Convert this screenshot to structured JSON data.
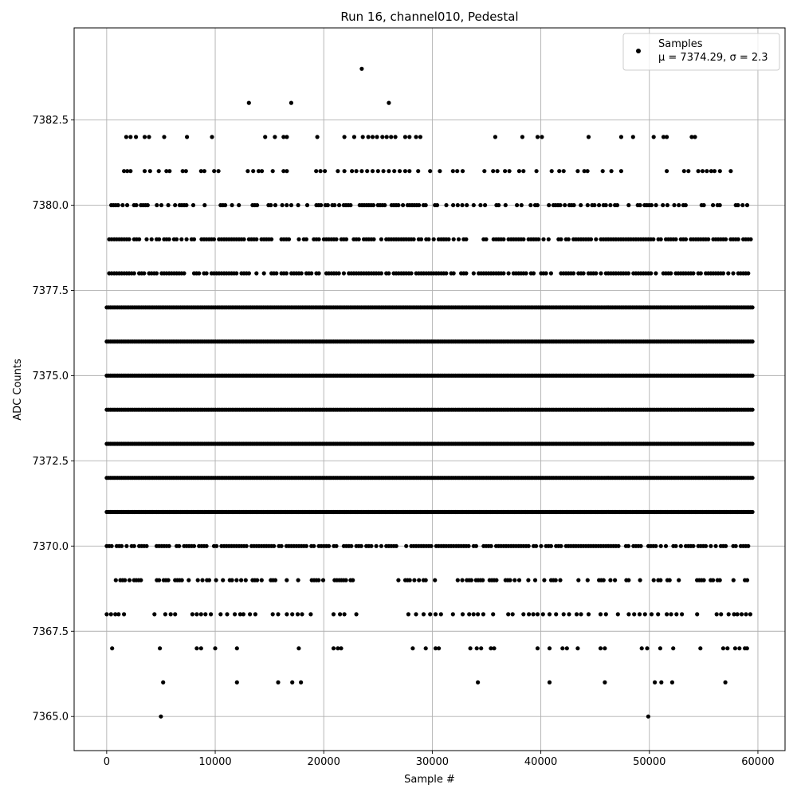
{
  "chart_data": {
    "type": "scatter",
    "title": "Run 16, channel010, Pedestal",
    "xlabel": "Sample #",
    "ylabel": "ADC Counts",
    "xlim": [
      -3000,
      62500
    ],
    "ylim": [
      7364.0,
      7385.2
    ],
    "xticks": [
      0,
      10000,
      20000,
      30000,
      40000,
      50000,
      60000
    ],
    "yticks": [
      7365.0,
      7367.5,
      7370.0,
      7372.5,
      7375.0,
      7377.5,
      7380.0,
      7382.5
    ],
    "xtick_labels": [
      "0",
      "10000",
      "20000",
      "30000",
      "40000",
      "50000",
      "60000"
    ],
    "ytick_labels": [
      "7365.0",
      "7367.5",
      "7370.0",
      "7372.5",
      "7375.0",
      "7377.5",
      "7380.0",
      "7382.5"
    ],
    "grid": true,
    "legend_position": "top-right",
    "series": [
      {
        "name": "Samples",
        "color": "#000000",
        "marker": "circle",
        "stats_label": "μ = 7374.29, σ = 2.3",
        "mean": 7374.29,
        "sigma": 2.3,
        "sample_range": [
          0,
          59500
        ],
        "dense_levels": [
          7371,
          7372,
          7373,
          7374,
          7375,
          7376,
          7377
        ],
        "medium_levels": [
          7370,
          7378,
          7379
        ],
        "sparse_levels": [
          7369,
          7380
        ],
        "points": [
          {
            "x": 5000,
            "y": 7365
          },
          {
            "x": 49900,
            "y": 7365
          },
          {
            "x": 5200,
            "y": 7366
          },
          {
            "x": 12000,
            "y": 7366
          },
          {
            "x": 15800,
            "y": 7366
          },
          {
            "x": 17100,
            "y": 7366
          },
          {
            "x": 17900,
            "y": 7366
          },
          {
            "x": 34200,
            "y": 7366
          },
          {
            "x": 40800,
            "y": 7366
          },
          {
            "x": 45900,
            "y": 7366
          },
          {
            "x": 50500,
            "y": 7366
          },
          {
            "x": 51100,
            "y": 7366
          },
          {
            "x": 52100,
            "y": 7366
          },
          {
            "x": 57000,
            "y": 7366
          },
          {
            "x": 500,
            "y": 7367
          },
          {
            "x": 4900,
            "y": 7367
          },
          {
            "x": 8300,
            "y": 7367
          },
          {
            "x": 8700,
            "y": 7367
          },
          {
            "x": 10000,
            "y": 7367
          },
          {
            "x": 12000,
            "y": 7367
          },
          {
            "x": 17700,
            "y": 7367
          },
          {
            "x": 20900,
            "y": 7367
          },
          {
            "x": 21300,
            "y": 7367
          },
          {
            "x": 21600,
            "y": 7367
          },
          {
            "x": 28200,
            "y": 7367
          },
          {
            "x": 29400,
            "y": 7367
          },
          {
            "x": 30300,
            "y": 7367
          },
          {
            "x": 30600,
            "y": 7367
          },
          {
            "x": 33500,
            "y": 7367
          },
          {
            "x": 34100,
            "y": 7367
          },
          {
            "x": 34500,
            "y": 7367
          },
          {
            "x": 35400,
            "y": 7367
          },
          {
            "x": 35700,
            "y": 7367
          },
          {
            "x": 39700,
            "y": 7367
          },
          {
            "x": 40800,
            "y": 7367
          },
          {
            "x": 42000,
            "y": 7367
          },
          {
            "x": 42400,
            "y": 7367
          },
          {
            "x": 43400,
            "y": 7367
          },
          {
            "x": 45500,
            "y": 7367
          },
          {
            "x": 45900,
            "y": 7367
          },
          {
            "x": 49300,
            "y": 7367
          },
          {
            "x": 49800,
            "y": 7367
          },
          {
            "x": 51000,
            "y": 7367
          },
          {
            "x": 52200,
            "y": 7367
          },
          {
            "x": 54700,
            "y": 7367
          },
          {
            "x": 56800,
            "y": 7367
          },
          {
            "x": 57200,
            "y": 7367
          },
          {
            "x": 57900,
            "y": 7367
          },
          {
            "x": 58300,
            "y": 7367
          },
          {
            "x": 58800,
            "y": 7367
          },
          {
            "x": 59000,
            "y": 7367
          },
          {
            "x": 0,
            "y": 7368
          },
          {
            "x": 400,
            "y": 7368
          },
          {
            "x": 800,
            "y": 7368
          },
          {
            "x": 1100,
            "y": 7368
          },
          {
            "x": 1600,
            "y": 7368
          },
          {
            "x": 4400,
            "y": 7368
          },
          {
            "x": 5400,
            "y": 7368
          },
          {
            "x": 5900,
            "y": 7368
          },
          {
            "x": 6300,
            "y": 7368
          },
          {
            "x": 7900,
            "y": 7368
          },
          {
            "x": 8300,
            "y": 7368
          },
          {
            "x": 8700,
            "y": 7368
          },
          {
            "x": 9100,
            "y": 7368
          },
          {
            "x": 9600,
            "y": 7368
          },
          {
            "x": 10500,
            "y": 7368
          },
          {
            "x": 11100,
            "y": 7368
          },
          {
            "x": 11800,
            "y": 7368
          },
          {
            "x": 12300,
            "y": 7368
          },
          {
            "x": 12600,
            "y": 7368
          },
          {
            "x": 13200,
            "y": 7368
          },
          {
            "x": 13700,
            "y": 7368
          },
          {
            "x": 15300,
            "y": 7368
          },
          {
            "x": 15800,
            "y": 7368
          },
          {
            "x": 16600,
            "y": 7368
          },
          {
            "x": 17100,
            "y": 7368
          },
          {
            "x": 17600,
            "y": 7368
          },
          {
            "x": 18000,
            "y": 7368
          },
          {
            "x": 18800,
            "y": 7368
          },
          {
            "x": 20900,
            "y": 7368
          },
          {
            "x": 21500,
            "y": 7368
          },
          {
            "x": 21900,
            "y": 7368
          },
          {
            "x": 23000,
            "y": 7368
          },
          {
            "x": 27800,
            "y": 7368
          },
          {
            "x": 28500,
            "y": 7368
          },
          {
            "x": 29200,
            "y": 7368
          },
          {
            "x": 29800,
            "y": 7368
          },
          {
            "x": 30300,
            "y": 7368
          },
          {
            "x": 30800,
            "y": 7368
          },
          {
            "x": 31900,
            "y": 7368
          },
          {
            "x": 32800,
            "y": 7368
          },
          {
            "x": 33400,
            "y": 7368
          },
          {
            "x": 33800,
            "y": 7368
          },
          {
            "x": 34200,
            "y": 7368
          },
          {
            "x": 34700,
            "y": 7368
          },
          {
            "x": 35600,
            "y": 7368
          },
          {
            "x": 37000,
            "y": 7368
          },
          {
            "x": 37400,
            "y": 7368
          },
          {
            "x": 38400,
            "y": 7368
          },
          {
            "x": 38900,
            "y": 7368
          },
          {
            "x": 39300,
            "y": 7368
          },
          {
            "x": 39700,
            "y": 7368
          },
          {
            "x": 40200,
            "y": 7368
          },
          {
            "x": 40800,
            "y": 7368
          },
          {
            "x": 41400,
            "y": 7368
          },
          {
            "x": 42100,
            "y": 7368
          },
          {
            "x": 42600,
            "y": 7368
          },
          {
            "x": 43300,
            "y": 7368
          },
          {
            "x": 43700,
            "y": 7368
          },
          {
            "x": 44400,
            "y": 7368
          },
          {
            "x": 45500,
            "y": 7368
          },
          {
            "x": 46000,
            "y": 7368
          },
          {
            "x": 47100,
            "y": 7368
          },
          {
            "x": 48100,
            "y": 7368
          },
          {
            "x": 48600,
            "y": 7368
          },
          {
            "x": 49100,
            "y": 7368
          },
          {
            "x": 49600,
            "y": 7368
          },
          {
            "x": 50200,
            "y": 7368
          },
          {
            "x": 50800,
            "y": 7368
          },
          {
            "x": 51600,
            "y": 7368
          },
          {
            "x": 52000,
            "y": 7368
          },
          {
            "x": 52500,
            "y": 7368
          },
          {
            "x": 53000,
            "y": 7368
          },
          {
            "x": 54400,
            "y": 7368
          },
          {
            "x": 56200,
            "y": 7368
          },
          {
            "x": 56600,
            "y": 7368
          },
          {
            "x": 57300,
            "y": 7368
          },
          {
            "x": 57800,
            "y": 7368
          },
          {
            "x": 58100,
            "y": 7368
          },
          {
            "x": 58500,
            "y": 7368
          },
          {
            "x": 58900,
            "y": 7368
          },
          {
            "x": 59300,
            "y": 7368
          },
          {
            "x": 13100,
            "y": 7383
          },
          {
            "x": 17000,
            "y": 7383
          },
          {
            "x": 26000,
            "y": 7383
          },
          {
            "x": 23500,
            "y": 7384
          },
          {
            "x": 1800,
            "y": 7382
          },
          {
            "x": 2200,
            "y": 7382
          },
          {
            "x": 2700,
            "y": 7382
          },
          {
            "x": 3500,
            "y": 7382
          },
          {
            "x": 3900,
            "y": 7382
          },
          {
            "x": 5300,
            "y": 7382
          },
          {
            "x": 7400,
            "y": 7382
          },
          {
            "x": 9700,
            "y": 7382
          },
          {
            "x": 14600,
            "y": 7382
          },
          {
            "x": 15500,
            "y": 7382
          },
          {
            "x": 16300,
            "y": 7382
          },
          {
            "x": 16600,
            "y": 7382
          },
          {
            "x": 19400,
            "y": 7382
          },
          {
            "x": 21900,
            "y": 7382
          },
          {
            "x": 22800,
            "y": 7382
          },
          {
            "x": 23600,
            "y": 7382
          },
          {
            "x": 24100,
            "y": 7382
          },
          {
            "x": 24500,
            "y": 7382
          },
          {
            "x": 24900,
            "y": 7382
          },
          {
            "x": 25400,
            "y": 7382
          },
          {
            "x": 25800,
            "y": 7382
          },
          {
            "x": 26200,
            "y": 7382
          },
          {
            "x": 26600,
            "y": 7382
          },
          {
            "x": 27500,
            "y": 7382
          },
          {
            "x": 27900,
            "y": 7382
          },
          {
            "x": 28500,
            "y": 7382
          },
          {
            "x": 28900,
            "y": 7382
          },
          {
            "x": 35800,
            "y": 7382
          },
          {
            "x": 38300,
            "y": 7382
          },
          {
            "x": 39700,
            "y": 7382
          },
          {
            "x": 40100,
            "y": 7382
          },
          {
            "x": 44400,
            "y": 7382
          },
          {
            "x": 47400,
            "y": 7382
          },
          {
            "x": 48500,
            "y": 7382
          },
          {
            "x": 50400,
            "y": 7382
          },
          {
            "x": 51300,
            "y": 7382
          },
          {
            "x": 51600,
            "y": 7382
          },
          {
            "x": 53900,
            "y": 7382
          },
          {
            "x": 54200,
            "y": 7382
          },
          {
            "x": 1600,
            "y": 7381
          },
          {
            "x": 1900,
            "y": 7381
          },
          {
            "x": 2200,
            "y": 7381
          },
          {
            "x": 3500,
            "y": 7381
          },
          {
            "x": 4000,
            "y": 7381
          },
          {
            "x": 4800,
            "y": 7381
          },
          {
            "x": 5500,
            "y": 7381
          },
          {
            "x": 5800,
            "y": 7381
          },
          {
            "x": 7000,
            "y": 7381
          },
          {
            "x": 7300,
            "y": 7381
          },
          {
            "x": 8700,
            "y": 7381
          },
          {
            "x": 9000,
            "y": 7381
          },
          {
            "x": 9900,
            "y": 7381
          },
          {
            "x": 10300,
            "y": 7381
          },
          {
            "x": 13000,
            "y": 7381
          },
          {
            "x": 13500,
            "y": 7381
          },
          {
            "x": 14000,
            "y": 7381
          },
          {
            "x": 14300,
            "y": 7381
          },
          {
            "x": 15300,
            "y": 7381
          },
          {
            "x": 16300,
            "y": 7381
          },
          {
            "x": 16600,
            "y": 7381
          },
          {
            "x": 19300,
            "y": 7381
          },
          {
            "x": 19700,
            "y": 7381
          },
          {
            "x": 20100,
            "y": 7381
          },
          {
            "x": 21300,
            "y": 7381
          },
          {
            "x": 21900,
            "y": 7381
          },
          {
            "x": 22600,
            "y": 7381
          },
          {
            "x": 23000,
            "y": 7381
          },
          {
            "x": 23500,
            "y": 7381
          },
          {
            "x": 24000,
            "y": 7381
          },
          {
            "x": 24500,
            "y": 7381
          },
          {
            "x": 25000,
            "y": 7381
          },
          {
            "x": 25500,
            "y": 7381
          },
          {
            "x": 26000,
            "y": 7381
          },
          {
            "x": 26500,
            "y": 7381
          },
          {
            "x": 27000,
            "y": 7381
          },
          {
            "x": 27500,
            "y": 7381
          },
          {
            "x": 27900,
            "y": 7381
          },
          {
            "x": 28700,
            "y": 7381
          },
          {
            "x": 29800,
            "y": 7381
          },
          {
            "x": 30700,
            "y": 7381
          },
          {
            "x": 31900,
            "y": 7381
          },
          {
            "x": 32300,
            "y": 7381
          },
          {
            "x": 32800,
            "y": 7381
          },
          {
            "x": 34800,
            "y": 7381
          },
          {
            "x": 35600,
            "y": 7381
          },
          {
            "x": 36000,
            "y": 7381
          },
          {
            "x": 36700,
            "y": 7381
          },
          {
            "x": 37100,
            "y": 7381
          },
          {
            "x": 38000,
            "y": 7381
          },
          {
            "x": 38400,
            "y": 7381
          },
          {
            "x": 39600,
            "y": 7381
          },
          {
            "x": 41000,
            "y": 7381
          },
          {
            "x": 41700,
            "y": 7381
          },
          {
            "x": 42100,
            "y": 7381
          },
          {
            "x": 43400,
            "y": 7381
          },
          {
            "x": 44000,
            "y": 7381
          },
          {
            "x": 44300,
            "y": 7381
          },
          {
            "x": 45700,
            "y": 7381
          },
          {
            "x": 46500,
            "y": 7381
          },
          {
            "x": 47400,
            "y": 7381
          },
          {
            "x": 51600,
            "y": 7381
          },
          {
            "x": 53200,
            "y": 7381
          },
          {
            "x": 53600,
            "y": 7381
          },
          {
            "x": 54500,
            "y": 7381
          },
          {
            "x": 54900,
            "y": 7381
          },
          {
            "x": 55300,
            "y": 7381
          },
          {
            "x": 55700,
            "y": 7381
          },
          {
            "x": 56000,
            "y": 7381
          },
          {
            "x": 56500,
            "y": 7381
          },
          {
            "x": 57500,
            "y": 7381
          }
        ]
      }
    ]
  }
}
